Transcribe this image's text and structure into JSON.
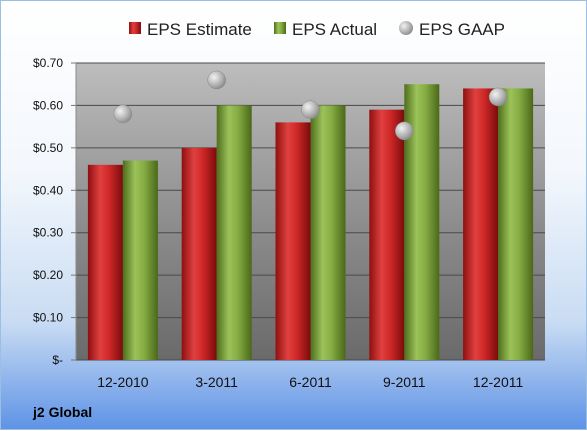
{
  "chart_data": {
    "type": "bar",
    "categories": [
      "12-2010",
      "3-2011",
      "6-2011",
      "9-2011",
      "12-2011"
    ],
    "series": [
      {
        "name": "EPS Estimate",
        "kind": "bar",
        "color": "#cc2020",
        "values": [
          0.46,
          0.5,
          0.56,
          0.59,
          0.64
        ]
      },
      {
        "name": "EPS Actual",
        "kind": "bar",
        "color": "#7fa83a",
        "values": [
          0.47,
          0.6,
          0.6,
          0.65,
          0.64
        ]
      },
      {
        "name": "EPS GAAP",
        "kind": "scatter",
        "color": "#b8b8b8",
        "values": [
          0.58,
          0.66,
          0.59,
          0.54,
          0.62
        ]
      }
    ],
    "ylim": [
      0,
      0.7
    ],
    "yticks": [
      {
        "value": 0,
        "label": "$-"
      },
      {
        "value": 0.1,
        "label": "$0.10"
      },
      {
        "value": 0.2,
        "label": "$0.20"
      },
      {
        "value": 0.3,
        "label": "$0.30"
      },
      {
        "value": 0.4,
        "label": "$0.40"
      },
      {
        "value": 0.5,
        "label": "$0.50"
      },
      {
        "value": 0.6,
        "label": "$0.60"
      },
      {
        "value": 0.7,
        "label": "$0.70"
      }
    ],
    "grid": true,
    "legend_position": "top",
    "company": "j2 Global"
  }
}
